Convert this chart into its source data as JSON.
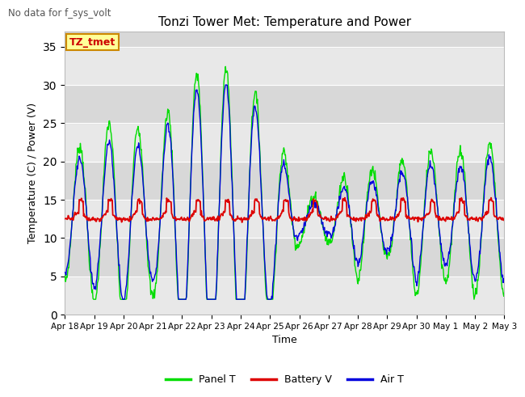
{
  "title": "Tonzi Tower Met: Temperature and Power",
  "subtitle": "No data for f_sys_volt",
  "xlabel": "Time",
  "ylabel": "Temperature (C) / Power (V)",
  "ylim": [
    0,
    37
  ],
  "yticks": [
    0,
    5,
    10,
    15,
    20,
    25,
    30,
    35
  ],
  "legend_labels": [
    "Panel T",
    "Battery V",
    "Air T"
  ],
  "legend_colors": [
    "#00dd00",
    "#dd0000",
    "#0000dd"
  ],
  "annotation_label": "TZ_tmet",
  "annotation_color": "#cc0000",
  "annotation_bg": "#ffff99",
  "plot_bg_light": "#e8e8e8",
  "plot_bg_dark": "#d0d0d0",
  "xtick_labels": [
    "Apr 18",
    "Apr 19",
    "Apr 20",
    "Apr 21",
    "Apr 22",
    "Apr 23",
    "Apr 24",
    "Apr 25",
    "Apr 26",
    "Apr 27",
    "Apr 28",
    "Apr 29",
    "Apr 30",
    "May 1",
    "May 2",
    "May 3"
  ],
  "xtick_positions": [
    0,
    1,
    2,
    3,
    4,
    5,
    6,
    7,
    8,
    9,
    10,
    11,
    12,
    13,
    14,
    15
  ]
}
